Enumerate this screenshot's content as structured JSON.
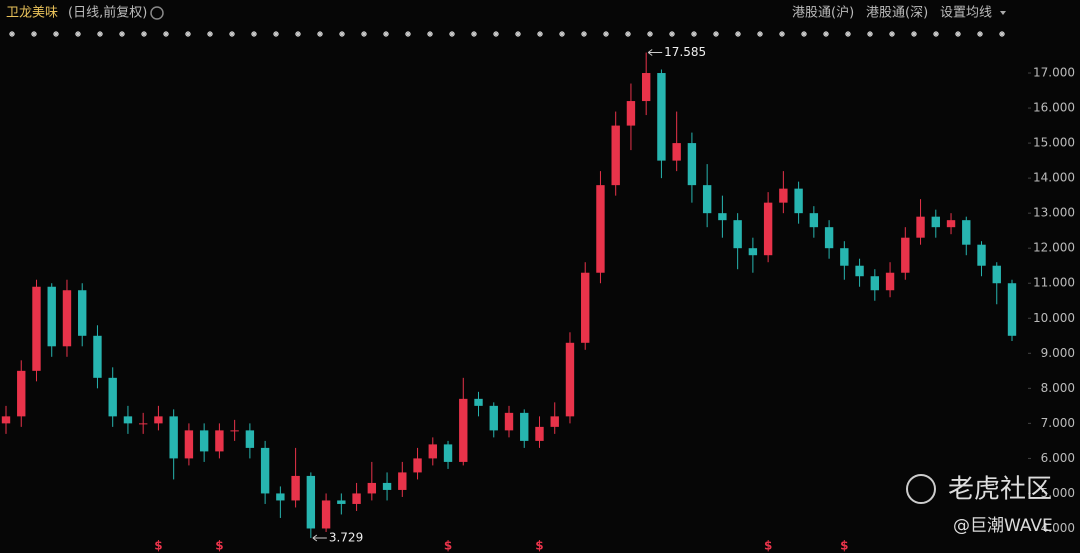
{
  "chart_data": {
    "type": "candlestick",
    "title": "卫龙美味",
    "subtitle": "(日线,前复权)",
    "toolbar": [
      "港股通(沪)",
      "港股通(深)",
      "设置均线"
    ],
    "open": [
      7.0,
      7.2,
      8.5,
      10.9,
      9.2,
      10.8,
      9.5,
      8.3,
      7.2,
      7.0,
      7.0,
      7.2,
      6.0,
      6.8,
      6.2,
      6.8,
      6.8,
      6.3,
      5.0,
      4.8,
      5.5,
      4.0,
      4.8,
      4.7,
      5.0,
      5.3,
      5.1,
      5.6,
      6.0,
      6.4,
      5.9,
      7.7,
      7.5,
      6.8,
      7.3,
      6.5,
      6.9,
      7.2,
      9.3,
      11.3,
      13.8,
      15.5,
      16.2,
      17.0,
      14.5,
      15.0,
      13.8,
      13.0,
      12.8,
      12.0,
      11.8,
      13.3,
      13.7,
      13.0,
      12.6,
      12.0,
      11.5,
      11.2,
      10.8,
      11.3,
      12.3,
      12.9,
      12.6,
      12.8,
      12.1,
      11.5,
      11.0
    ],
    "close": [
      7.2,
      8.5,
      10.9,
      9.2,
      10.8,
      9.5,
      8.3,
      7.2,
      7.0,
      7.0,
      7.2,
      6.0,
      6.8,
      6.2,
      6.8,
      6.8,
      6.3,
      5.0,
      4.8,
      5.5,
      4.0,
      4.8,
      4.7,
      5.0,
      5.3,
      5.1,
      5.6,
      6.0,
      6.4,
      5.9,
      7.7,
      7.5,
      6.8,
      7.3,
      6.5,
      6.9,
      7.2,
      9.3,
      11.3,
      13.8,
      15.5,
      16.2,
      17.0,
      14.5,
      15.0,
      13.8,
      13.0,
      12.8,
      12.0,
      11.8,
      13.3,
      13.7,
      13.0,
      12.6,
      12.0,
      11.5,
      11.2,
      10.8,
      11.3,
      12.3,
      12.9,
      12.6,
      12.8,
      12.1,
      11.5,
      11.0,
      9.5
    ],
    "high": [
      7.5,
      8.8,
      11.1,
      11.0,
      11.1,
      11.0,
      9.8,
      8.6,
      7.5,
      7.3,
      7.5,
      7.4,
      7.0,
      7.0,
      7.0,
      7.1,
      7.0,
      6.5,
      5.2,
      6.3,
      5.6,
      5.0,
      5.0,
      5.3,
      5.9,
      5.6,
      5.9,
      6.3,
      6.6,
      6.5,
      8.3,
      7.9,
      7.6,
      7.5,
      7.4,
      7.2,
      7.6,
      9.6,
      11.6,
      14.2,
      15.9,
      16.7,
      17.585,
      17.1,
      15.9,
      15.3,
      14.4,
      13.5,
      13.0,
      12.3,
      13.6,
      14.2,
      13.9,
      13.2,
      12.8,
      12.2,
      11.7,
      11.4,
      11.6,
      12.6,
      13.4,
      13.1,
      13.0,
      12.9,
      12.2,
      11.6,
      11.1
    ],
    "low": [
      6.7,
      6.9,
      8.2,
      8.9,
      8.9,
      9.2,
      8.0,
      6.9,
      6.7,
      6.7,
      6.8,
      5.4,
      5.8,
      5.9,
      6.0,
      6.5,
      6.0,
      4.7,
      4.3,
      4.6,
      3.729,
      3.9,
      4.4,
      4.5,
      4.8,
      4.8,
      4.9,
      5.4,
      5.8,
      5.7,
      5.8,
      7.2,
      6.6,
      6.6,
      6.3,
      6.3,
      6.7,
      7.0,
      9.1,
      11.0,
      13.5,
      14.8,
      15.8,
      14.0,
      14.2,
      13.3,
      12.6,
      12.3,
      11.4,
      11.3,
      11.6,
      13.0,
      12.7,
      12.3,
      11.7,
      11.1,
      10.9,
      10.5,
      10.6,
      11.1,
      12.1,
      12.3,
      12.4,
      11.8,
      11.2,
      10.4,
      9.35
    ],
    "up_color": "#e8334a",
    "down_color": "#27b5b0",
    "dividend_label": "$",
    "dividend_candles": [
      10,
      14,
      29,
      35,
      50,
      55
    ],
    "ylim": [
      3.3,
      17.8
    ],
    "yticks": [
      {
        "value": 4,
        "label": "4.000"
      },
      {
        "value": 5,
        "label": "5.000"
      },
      {
        "value": 6,
        "label": "6.000"
      },
      {
        "value": 7,
        "label": "7.000"
      },
      {
        "value": 8,
        "label": "8.000"
      },
      {
        "value": 9,
        "label": "9.000"
      },
      {
        "value": 10,
        "label": "10.000"
      },
      {
        "value": 11,
        "label": "11.000"
      },
      {
        "value": 12,
        "label": "12.000"
      },
      {
        "value": 13,
        "label": "13.000"
      },
      {
        "value": 14,
        "label": "14.000"
      },
      {
        "value": 15,
        "label": "15.000"
      },
      {
        "value": 16,
        "label": "16.000"
      },
      {
        "value": 17,
        "label": "17.000"
      }
    ],
    "watermark": "老虎社区",
    "author": "@巨潮WAVE"
  }
}
